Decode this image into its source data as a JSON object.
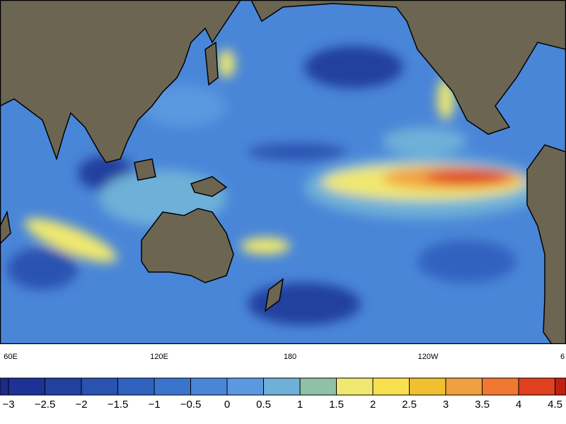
{
  "map": {
    "longitude_labels": [
      "60E",
      "120E",
      "180",
      "120W",
      "6"
    ],
    "colorbar": {
      "labels": [
        "−3",
        "−2.5",
        "−2",
        "−1.5",
        "−1",
        "−0.5",
        "0",
        "0.5",
        "1",
        "1.5",
        "2",
        "2.5",
        "3",
        "3.5",
        "4",
        "4.5"
      ],
      "colors": [
        "#1c2a8c",
        "#1e3296",
        "#22409e",
        "#2a52b0",
        "#3062c0",
        "#3a74cc",
        "#4a86d8",
        "#5a98e0",
        "#6eb0d8",
        "#90c0a8",
        "#f0e870",
        "#f8e050",
        "#f0c030",
        "#f0a040",
        "#f07830",
        "#e04020",
        "#c02010"
      ]
    }
  }
}
